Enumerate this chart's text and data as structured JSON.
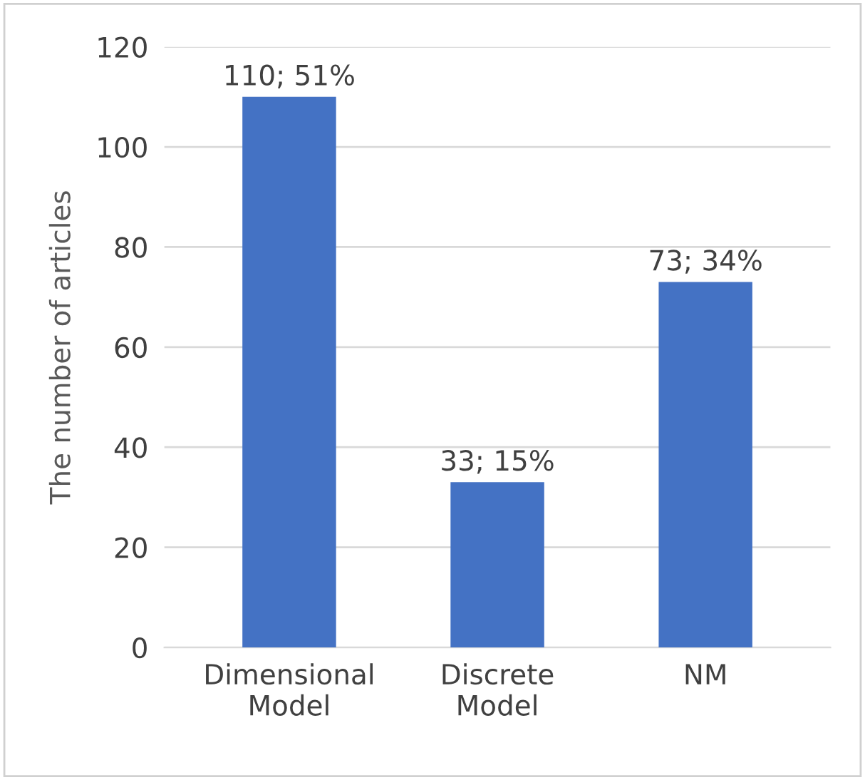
{
  "chart_data": {
    "type": "bar",
    "ylabel": "The number of articles",
    "categories": [
      "Dimensional\nModel",
      "Discrete\nModel",
      "NM"
    ],
    "values": [
      110,
      33,
      73
    ],
    "value_labels": [
      "110; 51%",
      "33; 15%",
      "73; 34%"
    ],
    "color": "#4472c4",
    "ylim": [
      0,
      120
    ],
    "yticks": [
      0,
      20,
      40,
      60,
      80,
      100,
      120
    ],
    "grid": "y"
  }
}
